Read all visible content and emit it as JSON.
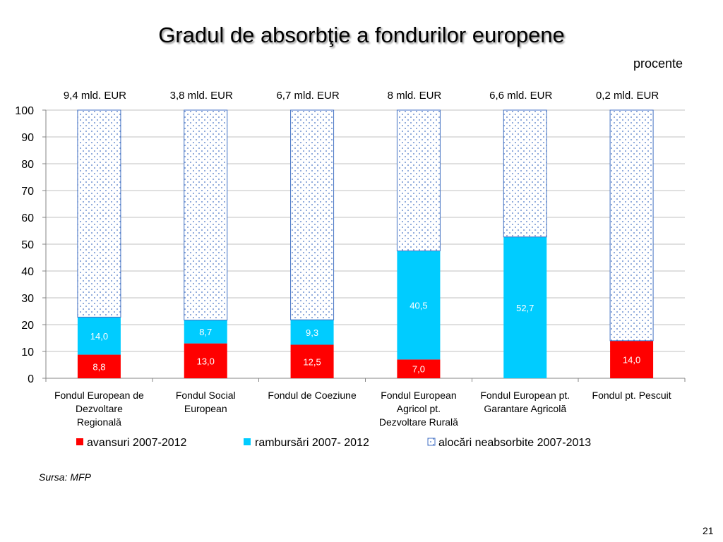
{
  "slide": {
    "source": "Sursa: MFP",
    "page_number": "21"
  },
  "chart_data": {
    "type": "bar",
    "stacked": true,
    "title": "Gradul de absorbţie a fondurilor europene",
    "y_unit": "procente",
    "ylim": [
      0,
      100
    ],
    "yticks": [
      0,
      10,
      20,
      30,
      40,
      50,
      60,
      70,
      80,
      90,
      100
    ],
    "grid": true,
    "legend": "bottom",
    "categories": [
      "Fondul European de\nDezvoltare\nRegională",
      "Fondul Social\nEuropean",
      "Fondul de Coeziune",
      "Fondul European\nAgricol pt.\nDezvoltare Rurală",
      "Fondul European pt.\nGarantare Agricolă",
      "Fondul pt. Pescuit"
    ],
    "bar_top_labels": [
      "9,4 mld. EUR",
      "3,8 mld. EUR",
      "6,7 mld. EUR",
      "8 mld. EUR",
      "6,6 mld. EUR",
      "0,2 mld. EUR"
    ],
    "series": [
      {
        "name": "avansuri 2007-2012",
        "color": "#ff0000",
        "show_labels": true,
        "values": [
          8.8,
          13.0,
          12.5,
          7.0,
          null,
          14.0
        ]
      },
      {
        "name": "rambursări 2007- 2012",
        "color": "#00ccff",
        "show_labels": true,
        "values": [
          14.0,
          8.7,
          9.3,
          40.5,
          52.7,
          null
        ]
      },
      {
        "name": "alocări neabsorbite 2007-2013",
        "color": "#4472c4",
        "fill": "dotted",
        "show_labels": false,
        "values": [
          77.2,
          78.3,
          78.2,
          52.5,
          47.3,
          86.0
        ]
      }
    ]
  }
}
